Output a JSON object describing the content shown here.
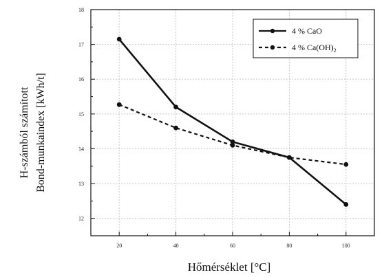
{
  "chart_data": {
    "type": "line",
    "xlabel": "Hőmérséklet [°C]",
    "ylabel_lines": [
      "H-számból számított",
      "Bond-munkaindex [kWh/t]"
    ],
    "xlim": [
      10,
      110
    ],
    "ylim": [
      11.5,
      18
    ],
    "x_ticks": [
      "20",
      "40",
      "60",
      "80",
      "100"
    ],
    "y_ticks": [
      "12",
      "13",
      "14",
      "15",
      "16",
      "17",
      "18"
    ],
    "grid": true,
    "legend_position": "top-right",
    "x": [
      20,
      40,
      60,
      80,
      100
    ],
    "series": [
      {
        "name": "4 % CaO",
        "legend_main": "4 % CaO",
        "legend_sub": "",
        "style": "solid",
        "values": [
          17.15,
          15.2,
          14.2,
          13.75,
          12.4
        ]
      },
      {
        "name": "4 % Ca(OH)2",
        "legend_main": "4 % Ca(OH)",
        "legend_sub": "2",
        "style": "dashed",
        "values": [
          15.27,
          14.6,
          14.1,
          13.75,
          13.55
        ]
      }
    ],
    "colors": {
      "line": "#111111",
      "grid": "#c8c8c8",
      "frame": "#111111"
    }
  }
}
